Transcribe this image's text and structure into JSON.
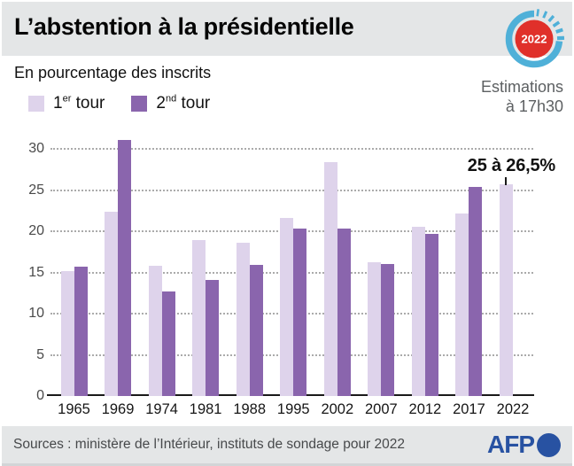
{
  "header": {
    "title": "L’abstention à la présidentielle"
  },
  "badge": {
    "year": "2022"
  },
  "estimations": {
    "line1": "Estimations",
    "line2": "à 17h30"
  },
  "subtitle": "En pourcentage des inscrits",
  "legend": [
    {
      "prefix": "1",
      "sup": "er",
      "rest": " tour",
      "color": "#ded3eb"
    },
    {
      "prefix": "2",
      "sup": "nd",
      "rest": " tour",
      "color": "#8a65ad"
    }
  ],
  "chart_data": {
    "type": "bar",
    "title": "L’abstention à la présidentielle",
    "subtitle": "En pourcentage des inscrits",
    "categories": [
      "1965",
      "1969",
      "1974",
      "1981",
      "1988",
      "1995",
      "2002",
      "2007",
      "2012",
      "2017",
      "2022"
    ],
    "series": [
      {
        "name": "1er tour",
        "color": "#ded3eb",
        "values": [
          15.2,
          22.4,
          15.8,
          18.9,
          18.6,
          21.6,
          28.4,
          16.2,
          20.5,
          22.2,
          25.7
        ]
      },
      {
        "name": "2nd tour",
        "color": "#8a65ad",
        "values": [
          15.7,
          31.1,
          12.7,
          14.1,
          15.9,
          20.3,
          20.3,
          16.0,
          19.7,
          25.4,
          null
        ]
      }
    ],
    "yticks": [
      0,
      5,
      10,
      15,
      20,
      25,
      30
    ],
    "ylim": [
      0,
      32
    ],
    "grid": "horizontal-dotted",
    "legend_position": "top-left",
    "annotation": {
      "text": "25 à 26,5%",
      "target_category": "2022",
      "target_value": 25.7
    }
  },
  "footer": {
    "sources": "Sources : ministère de l’Intérieur, instituts de sondage pour 2022",
    "logo_text": "AFP"
  },
  "colors": {
    "band_gray": "#e4e6e7",
    "light_purple": "#ded3eb",
    "dark_purple": "#8a65ad",
    "afp_blue": "#2852a2",
    "badge_red": "#e0302a",
    "badge_blue": "#4fb0d8",
    "grid_gray": "#ababab"
  }
}
